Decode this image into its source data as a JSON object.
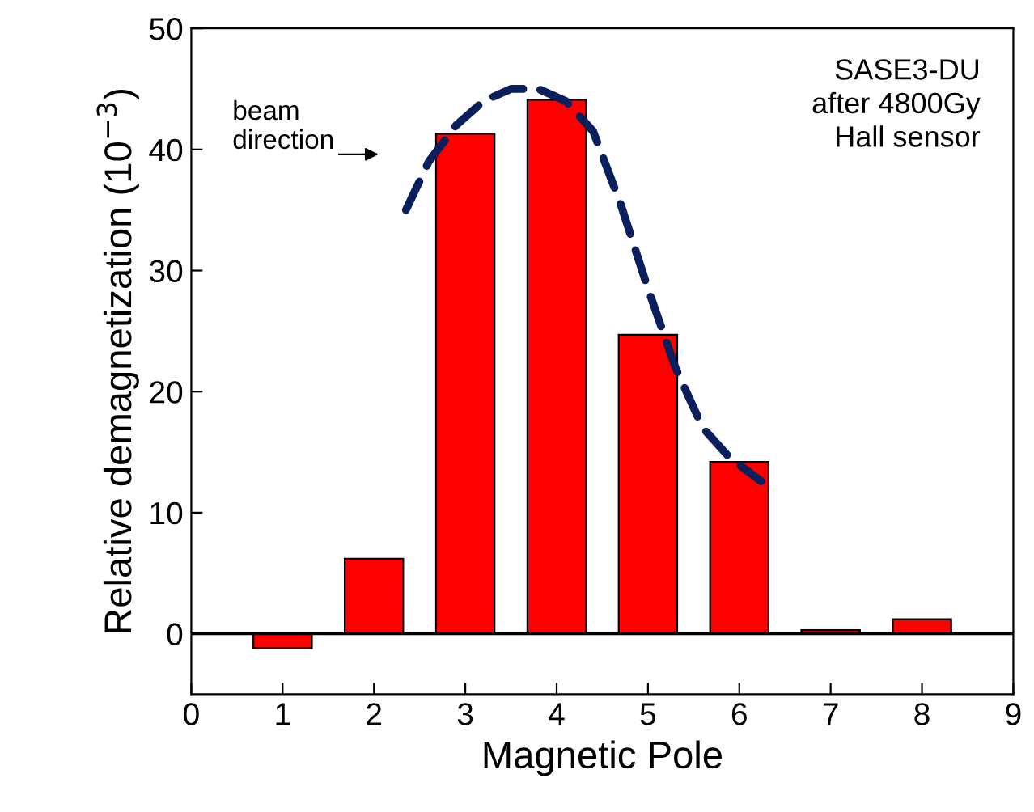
{
  "chart_data": {
    "type": "bar",
    "xlabel": "Magnetic Pole",
    "ylabel": "Relative demagnetization (10$^{−3}$)",
    "x": [
      1,
      2,
      3,
      4,
      5,
      6,
      7,
      8
    ],
    "series": [
      {
        "color": "#ff0000",
        "values": [
          -1.2,
          6.2,
          41.3,
          44.1,
          24.7,
          14.2,
          0.3,
          1.2
        ]
      },
      {
        "type": "line",
        "color": "#0a1f5c",
        "line_style": "dashed",
        "x": [
          2.35,
          2.6,
          2.9,
          3.2,
          3.5,
          3.8,
          4.1,
          4.4,
          4.7,
          5.0,
          5.3,
          5.6,
          5.9,
          6.24
        ],
        "values": [
          35,
          39,
          42,
          44,
          45,
          45,
          44,
          41.5,
          35.5,
          28.5,
          22,
          17,
          14.5,
          12.6
        ]
      }
    ],
    "xlim": [
      0,
      9
    ],
    "xticks": [
      0,
      1,
      2,
      3,
      4,
      5,
      6,
      7,
      8,
      9
    ],
    "ylim": [
      -5,
      50
    ],
    "yticks": [
      0,
      10,
      20,
      30,
      40,
      50
    ],
    "ref_lines": [
      {
        "axis": "y",
        "value": 0,
        "color": "#000000"
      }
    ],
    "annotations": [
      "beam direction",
      "SASE3-DU after 4800Gy Hall sensor"
    ],
    "grid": false,
    "legend": false
  }
}
